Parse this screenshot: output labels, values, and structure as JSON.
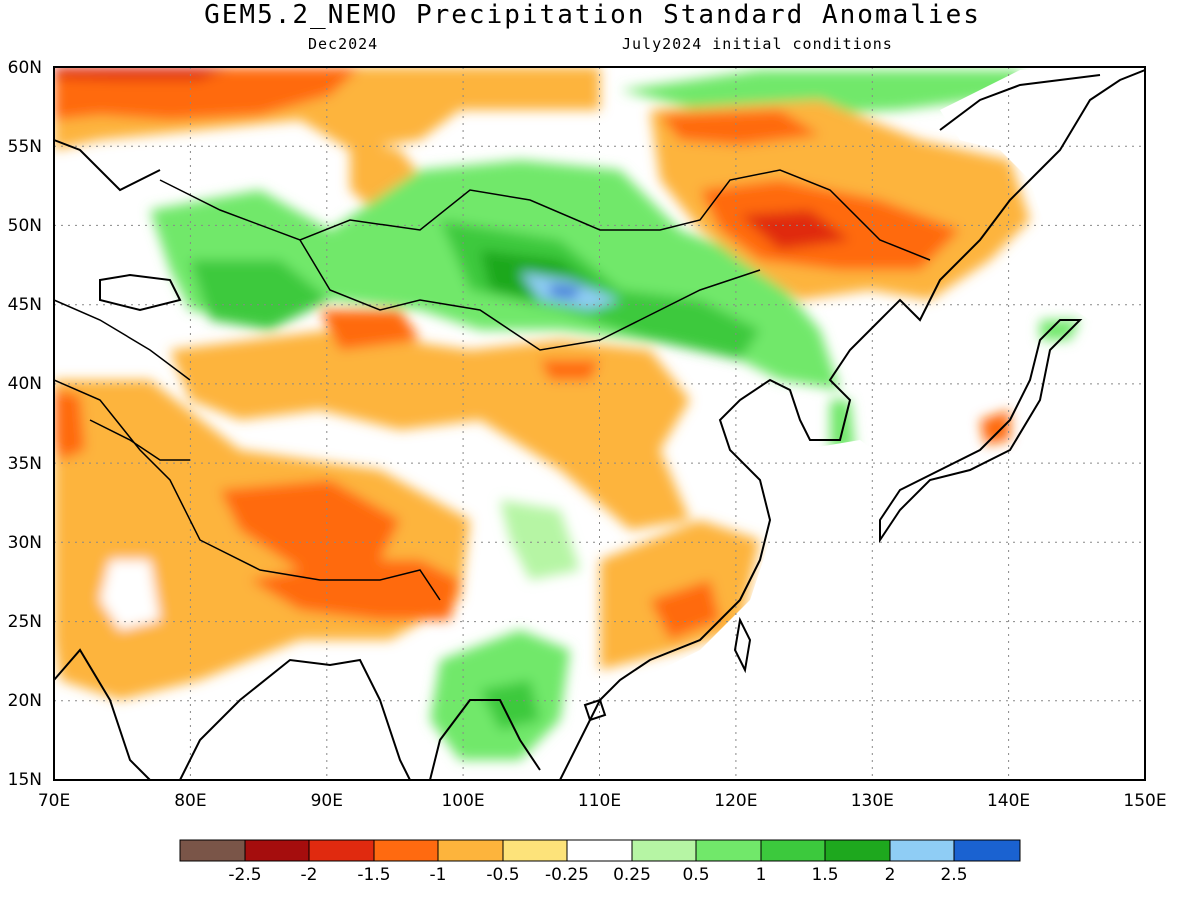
{
  "title": "GEM5.2_NEMO Precipitation Standard Anomalies",
  "subtitle_left": "Dec2024",
  "subtitle_right": "July2024 initial conditions",
  "map": {
    "lon_range": [
      70,
      150
    ],
    "lat_range": [
      15,
      60
    ],
    "lon_labels": [
      "70E",
      "80E",
      "90E",
      "100E",
      "110E",
      "120E",
      "130E",
      "140E",
      "150E"
    ],
    "lat_labels": [
      "15N",
      "20N",
      "25N",
      "30N",
      "35N",
      "40N",
      "45N",
      "50N",
      "55N",
      "60N"
    ],
    "grid": "dotted"
  },
  "colorbar": {
    "colors": [
      "#7a5548",
      "#a50d0d",
      "#e02a0f",
      "#ff6a10",
      "#fdb43c",
      "#fde37a",
      "#ffffff",
      "#b6f5a4",
      "#71e86a",
      "#3cc93d",
      "#1ea81e",
      "#8fcdf5",
      "#1a62d1"
    ],
    "labels": [
      "-2.5",
      "-2",
      "-1.5",
      "-1",
      "-0.5",
      "-0.25",
      "0.25",
      "0.5",
      "1",
      "1.5",
      "2",
      "2.5"
    ]
  }
}
